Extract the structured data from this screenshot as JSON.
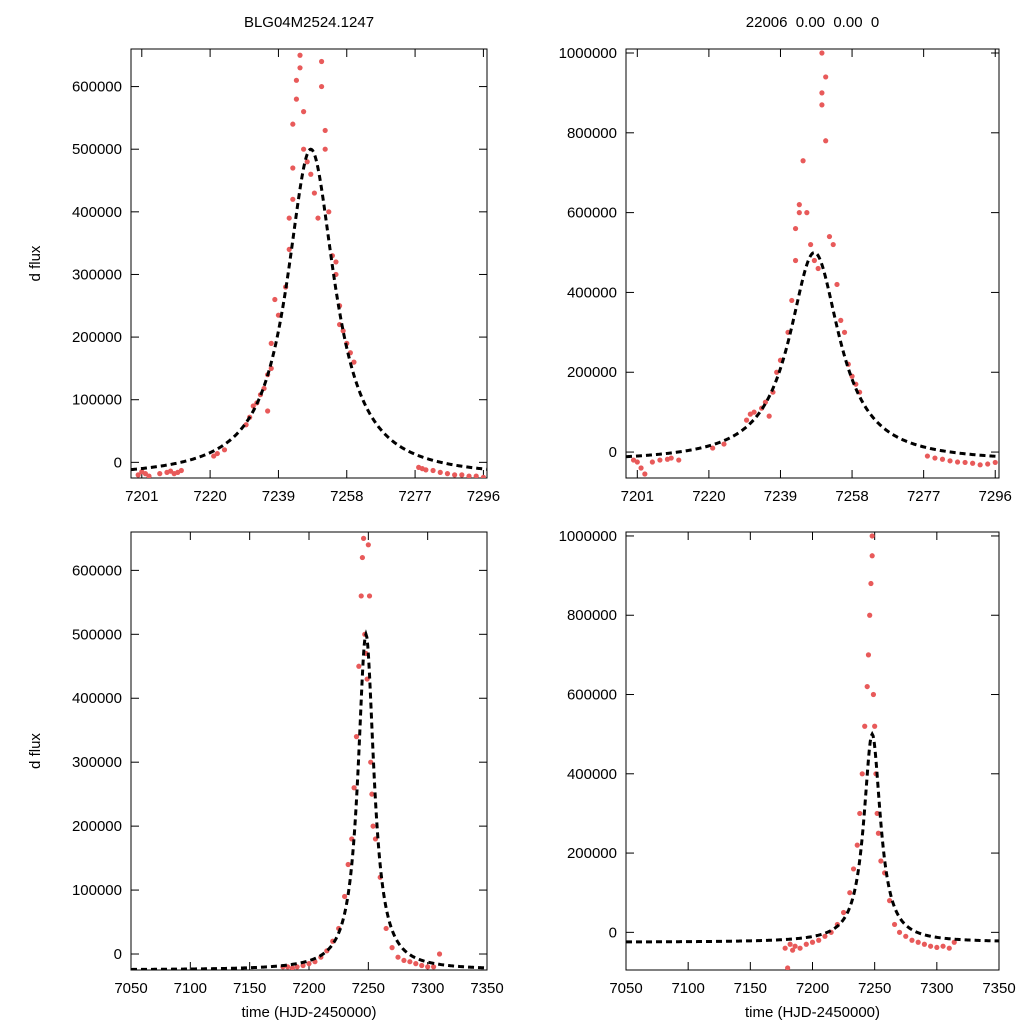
{
  "chart_data": [
    {
      "type": "scatter",
      "panel": "top-left",
      "title": "BLG04M2524.1247",
      "xlabel": "",
      "ylabel": "d flux",
      "xlim": [
        7198,
        7297
      ],
      "ylim": [
        -25000,
        660000
      ],
      "xticks": [
        7201,
        7220,
        7239,
        7258,
        7277,
        7296
      ],
      "yticks": [
        0,
        100000,
        200000,
        300000,
        400000,
        500000,
        600000
      ],
      "model": {
        "name": "fit",
        "t0": 7248,
        "peak": 500000,
        "base": -25000,
        "tE": 12
      },
      "series": [
        {
          "name": "data",
          "color": "#e85a5a",
          "points": [
            [
              7200,
              -20000
            ],
            [
              7201,
              -15000
            ],
            [
              7202,
              -18000
            ],
            [
              7203,
              -22000
            ],
            [
              7206,
              -18000
            ],
            [
              7208,
              -16000
            ],
            [
              7209,
              -14000
            ],
            [
              7210,
              -18000
            ],
            [
              7211,
              -16000
            ],
            [
              7212,
              -13000
            ],
            [
              7221,
              10000
            ],
            [
              7222,
              14000
            ],
            [
              7224,
              20000
            ],
            [
              7230,
              60000
            ],
            [
              7231,
              72000
            ],
            [
              7232,
              90000
            ],
            [
              7233,
              95000
            ],
            [
              7234,
              108000
            ],
            [
              7235,
              118000
            ],
            [
              7236,
              82000
            ],
            [
              7236,
              140000
            ],
            [
              7237,
              150000
            ],
            [
              7237,
              190000
            ],
            [
              7238,
              260000
            ],
            [
              7239,
              235000
            ],
            [
              7241,
              280000
            ],
            [
              7242,
              340000
            ],
            [
              7242,
              390000
            ],
            [
              7243,
              420000
            ],
            [
              7243,
              470000
            ],
            [
              7243,
              540000
            ],
            [
              7244,
              580000
            ],
            [
              7244,
              610000
            ],
            [
              7245,
              630000
            ],
            [
              7245,
              650000
            ],
            [
              7246,
              500000
            ],
            [
              7246,
              560000
            ],
            [
              7247,
              480000
            ],
            [
              7248,
              460000
            ],
            [
              7249,
              430000
            ],
            [
              7250,
              390000
            ],
            [
              7251,
              600000
            ],
            [
              7251,
              640000
            ],
            [
              7252,
              530000
            ],
            [
              7252,
              500000
            ],
            [
              7253,
              400000
            ],
            [
              7254,
              330000
            ],
            [
              7255,
              320000
            ],
            [
              7255,
              300000
            ],
            [
              7256,
              250000
            ],
            [
              7256,
              220000
            ],
            [
              7257,
              210000
            ],
            [
              7258,
              190000
            ],
            [
              7259,
              175000
            ],
            [
              7260,
              160000
            ],
            [
              7278,
              -8000
            ],
            [
              7279,
              -10000
            ],
            [
              7280,
              -12000
            ],
            [
              7282,
              -13000
            ],
            [
              7284,
              -16000
            ],
            [
              7286,
              -18000
            ],
            [
              7288,
              -20000
            ],
            [
              7290,
              -20000
            ],
            [
              7292,
              -22000
            ],
            [
              7294,
              -22000
            ],
            [
              7296,
              -24000
            ]
          ]
        }
      ]
    },
    {
      "type": "scatter",
      "panel": "top-right",
      "title": "22006  0.00  0.00  0",
      "xlabel": "",
      "ylabel": "",
      "xlim": [
        7198,
        7297
      ],
      "ylim": [
        -65000,
        1010000
      ],
      "xticks": [
        7201,
        7220,
        7239,
        7258,
        7277,
        7296
      ],
      "yticks": [
        0,
        200000,
        400000,
        600000,
        800000,
        1000000
      ],
      "model": {
        "name": "fit",
        "t0": 7248,
        "peak": 500000,
        "base": -25000,
        "tE": 12
      },
      "series": [
        {
          "name": "data",
          "color": "#e85a5a",
          "points": [
            [
              7200,
              -20000
            ],
            [
              7201,
              -25000
            ],
            [
              7202,
              -40000
            ],
            [
              7203,
              -55000
            ],
            [
              7205,
              -25000
            ],
            [
              7207,
              -20000
            ],
            [
              7209,
              -18000
            ],
            [
              7210,
              -15000
            ],
            [
              7212,
              -20000
            ],
            [
              7221,
              10000
            ],
            [
              7224,
              20000
            ],
            [
              7230,
              80000
            ],
            [
              7231,
              95000
            ],
            [
              7232,
              100000
            ],
            [
              7234,
              110000
            ],
            [
              7235,
              125000
            ],
            [
              7236,
              90000
            ],
            [
              7237,
              150000
            ],
            [
              7238,
              200000
            ],
            [
              7239,
              230000
            ],
            [
              7241,
              300000
            ],
            [
              7242,
              380000
            ],
            [
              7243,
              480000
            ],
            [
              7243,
              560000
            ],
            [
              7244,
              600000
            ],
            [
              7244,
              620000
            ],
            [
              7245,
              730000
            ],
            [
              7246,
              600000
            ],
            [
              7247,
              520000
            ],
            [
              7248,
              480000
            ],
            [
              7249,
              460000
            ],
            [
              7250,
              870000
            ],
            [
              7250,
              900000
            ],
            [
              7250,
              1000000
            ],
            [
              7251,
              940000
            ],
            [
              7251,
              780000
            ],
            [
              7252,
              540000
            ],
            [
              7253,
              520000
            ],
            [
              7254,
              420000
            ],
            [
              7255,
              330000
            ],
            [
              7256,
              300000
            ],
            [
              7257,
              220000
            ],
            [
              7258,
              190000
            ],
            [
              7259,
              170000
            ],
            [
              7260,
              150000
            ],
            [
              7278,
              -10000
            ],
            [
              7280,
              -15000
            ],
            [
              7282,
              -18000
            ],
            [
              7284,
              -22000
            ],
            [
              7286,
              -25000
            ],
            [
              7288,
              -26000
            ],
            [
              7290,
              -28000
            ],
            [
              7292,
              -32000
            ],
            [
              7294,
              -30000
            ],
            [
              7296,
              -26000
            ]
          ]
        }
      ]
    },
    {
      "type": "scatter",
      "panel": "bottom-left",
      "title": "",
      "xlabel": "time (HJD-2450000)",
      "ylabel": "d flux",
      "xlim": [
        7050,
        7350
      ],
      "ylim": [
        -25000,
        660000
      ],
      "xticks": [
        7050,
        7100,
        7150,
        7200,
        7250,
        7300,
        7350
      ],
      "yticks": [
        0,
        100000,
        200000,
        300000,
        400000,
        500000,
        600000
      ],
      "model": {
        "name": "fit",
        "t0": 7248,
        "peak": 500000,
        "base": -25000,
        "tE": 12
      },
      "series": [
        {
          "name": "data",
          "color": "#e85a5a",
          "points": [
            [
              7178,
              -20000
            ],
            [
              7182,
              -20000
            ],
            [
              7186,
              -22000
            ],
            [
              7190,
              -20000
            ],
            [
              7195,
              -18000
            ],
            [
              7200,
              -15000
            ],
            [
              7205,
              -12000
            ],
            [
              7210,
              -5000
            ],
            [
              7215,
              5000
            ],
            [
              7220,
              20000
            ],
            [
              7225,
              40000
            ],
            [
              7230,
              90000
            ],
            [
              7233,
              140000
            ],
            [
              7236,
              180000
            ],
            [
              7238,
              260000
            ],
            [
              7240,
              340000
            ],
            [
              7242,
              450000
            ],
            [
              7244,
              560000
            ],
            [
              7245,
              620000
            ],
            [
              7246,
              650000
            ],
            [
              7247,
              500000
            ],
            [
              7248,
              470000
            ],
            [
              7249,
              430000
            ],
            [
              7250,
              640000
            ],
            [
              7251,
              560000
            ],
            [
              7252,
              300000
            ],
            [
              7253,
              250000
            ],
            [
              7254,
              200000
            ],
            [
              7256,
              180000
            ],
            [
              7260,
              120000
            ],
            [
              7265,
              40000
            ],
            [
              7270,
              10000
            ],
            [
              7275,
              -5000
            ],
            [
              7280,
              -10000
            ],
            [
              7285,
              -12000
            ],
            [
              7290,
              -15000
            ],
            [
              7295,
              -18000
            ],
            [
              7300,
              -20000
            ],
            [
              7305,
              -20000
            ],
            [
              7310,
              0
            ]
          ]
        }
      ]
    },
    {
      "type": "scatter",
      "panel": "bottom-right",
      "title": "",
      "xlabel": "time (HJD-2450000)",
      "ylabel": "",
      "xlim": [
        7050,
        7350
      ],
      "ylim": [
        -95000,
        1010000
      ],
      "xticks": [
        7050,
        7100,
        7150,
        7200,
        7250,
        7300,
        7350
      ],
      "yticks": [
        0,
        200000,
        400000,
        600000,
        800000,
        1000000
      ],
      "model": {
        "name": "fit",
        "t0": 7248,
        "peak": 500000,
        "base": -25000,
        "tE": 12
      },
      "series": [
        {
          "name": "data",
          "color": "#e85a5a",
          "points": [
            [
              7178,
              -40000
            ],
            [
              7180,
              -90000
            ],
            [
              7182,
              -30000
            ],
            [
              7184,
              -45000
            ],
            [
              7186,
              -35000
            ],
            [
              7190,
              -40000
            ],
            [
              7195,
              -30000
            ],
            [
              7200,
              -25000
            ],
            [
              7205,
              -20000
            ],
            [
              7210,
              -10000
            ],
            [
              7215,
              0
            ],
            [
              7220,
              20000
            ],
            [
              7225,
              50000
            ],
            [
              7230,
              100000
            ],
            [
              7233,
              160000
            ],
            [
              7236,
              220000
            ],
            [
              7238,
              300000
            ],
            [
              7240,
              400000
            ],
            [
              7242,
              520000
            ],
            [
              7244,
              620000
            ],
            [
              7245,
              700000
            ],
            [
              7246,
              800000
            ],
            [
              7247,
              880000
            ],
            [
              7248,
              950000
            ],
            [
              7248,
              1000000
            ],
            [
              7249,
              600000
            ],
            [
              7250,
              520000
            ],
            [
              7251,
              400000
            ],
            [
              7252,
              300000
            ],
            [
              7253,
              250000
            ],
            [
              7255,
              180000
            ],
            [
              7258,
              150000
            ],
            [
              7262,
              80000
            ],
            [
              7266,
              20000
            ],
            [
              7270,
              0
            ],
            [
              7275,
              -10000
            ],
            [
              7280,
              -20000
            ],
            [
              7285,
              -25000
            ],
            [
              7290,
              -30000
            ],
            [
              7295,
              -35000
            ],
            [
              7300,
              -38000
            ],
            [
              7305,
              -35000
            ],
            [
              7310,
              -40000
            ],
            [
              7314,
              -25000
            ]
          ]
        }
      ]
    }
  ]
}
